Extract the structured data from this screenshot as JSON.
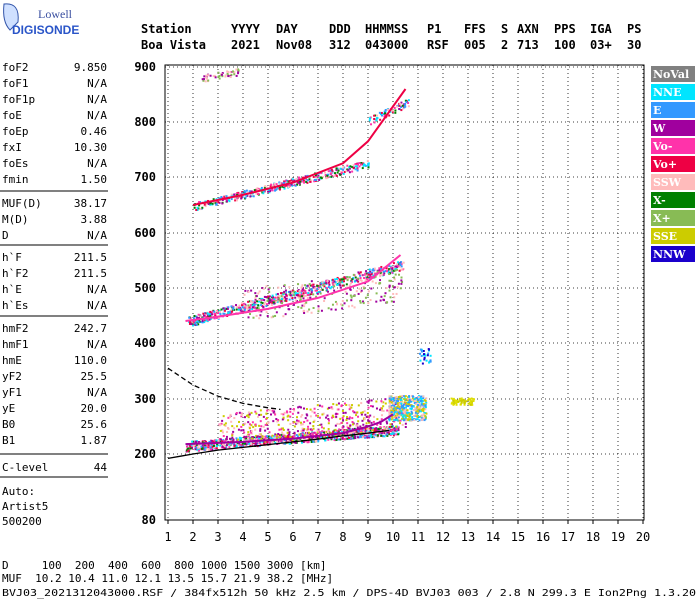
{
  "logo": {
    "top": "Lowell",
    "bottom": "DIGISONDE"
  },
  "header": {
    "labels": [
      "Station",
      "YYYY",
      "DAY",
      "DDD",
      "HHMMSS",
      "P1",
      "FFS",
      "S",
      "AXN",
      "PPS",
      "IGA",
      "PS"
    ],
    "values": [
      "Boa Vista",
      "2021",
      "Nov08",
      "312",
      "043000",
      "RSF",
      "005",
      "2",
      "713",
      "100",
      "03+",
      "30"
    ]
  },
  "params": {
    "group1": [
      {
        "label": "foF2",
        "value": "9.850"
      },
      {
        "label": "foF1",
        "value": "N/A"
      },
      {
        "label": "foF1p",
        "value": "N/A"
      },
      {
        "label": "foE",
        "value": "N/A"
      },
      {
        "label": "foEp",
        "value": "0.46"
      },
      {
        "label": "fxI",
        "value": "10.30"
      },
      {
        "label": "foEs",
        "value": "N/A"
      },
      {
        "label": "fmin",
        "value": "1.50"
      }
    ],
    "group2": [
      {
        "label": "MUF(D)",
        "value": "38.17"
      },
      {
        "label": "M(D)",
        "value": "3.88"
      },
      {
        "label": "D",
        "value": "N/A"
      }
    ],
    "group3": [
      {
        "label": "h`F",
        "value": "211.5"
      },
      {
        "label": "h`F2",
        "value": "211.5"
      },
      {
        "label": "h`E",
        "value": "N/A"
      },
      {
        "label": "h`Es",
        "value": "N/A"
      }
    ],
    "group4": [
      {
        "label": "hmF2",
        "value": "242.7"
      },
      {
        "label": "hmF1",
        "value": "N/A"
      },
      {
        "label": "hmE",
        "value": "110.0"
      },
      {
        "label": "yF2",
        "value": "25.5"
      },
      {
        "label": "yF1",
        "value": "N/A"
      },
      {
        "label": "yE",
        "value": "20.0"
      },
      {
        "label": "B0",
        "value": "25.6"
      },
      {
        "label": "B1",
        "value": "1.87"
      }
    ],
    "clevel": {
      "label": "C-level",
      "value": "44"
    },
    "auto": [
      "Auto:",
      "Artist5",
      "500200"
    ]
  },
  "legend": [
    {
      "label": "NoVal",
      "bg": "#808080",
      "fg": "#ffffff"
    },
    {
      "label": "NNE",
      "bg": "#00e5ff",
      "fg": "#ffffff"
    },
    {
      "label": "E",
      "bg": "#3399ff",
      "fg": "#ffffff"
    },
    {
      "label": "W",
      "bg": "#a0009e",
      "fg": "#ffffff"
    },
    {
      "label": "Vo-",
      "bg": "#ff33aa",
      "fg": "#ffffff"
    },
    {
      "label": "Vo+",
      "bg": "#ee0044",
      "fg": "#ffffff"
    },
    {
      "label": "SSW",
      "bg": "#ffbbbb",
      "fg": "#ffffff"
    },
    {
      "label": "X-",
      "bg": "#008000",
      "fg": "#ffffff"
    },
    {
      "label": "X+",
      "bg": "#88bb55",
      "fg": "#ffffff"
    },
    {
      "label": "SSE",
      "bg": "#cccc00",
      "fg": "#ffffff"
    },
    {
      "label": "NNW",
      "bg": "#1a00cc",
      "fg": "#ffffff"
    }
  ],
  "footer": {
    "d_row": "D     100  200  400  600  800 1000 1500 3000 [km]",
    "muf_row": "MUF  10.2 10.4 11.0 12.1 13.5 15.7 21.9 38.2 [MHz]",
    "file_row": "BVJ03_2021312043000.RSF / 384fx512h 50 kHz 2.5 km / DPS-4D BVJ03 003 / 2.8 N 299.3 E Ion2Png 1.3.20"
  },
  "chart_data": {
    "type": "scatter",
    "x_ticks": [
      "1",
      "2",
      "3",
      "4",
      "5",
      "6",
      "7",
      "8",
      "9",
      "10",
      "11",
      "12",
      "13",
      "14",
      "15",
      "16",
      "17",
      "18",
      "19",
      "20"
    ],
    "y_ticks": [
      "80",
      "200",
      "300",
      "400",
      "500",
      "600",
      "700",
      "800",
      "900"
    ],
    "xlim": [
      1,
      20
    ],
    "y_scale": "log",
    "ylim": [
      80,
      900
    ],
    "grid": true,
    "legend_placement": "right",
    "traces": [
      {
        "name": "W",
        "color": "#a0009e",
        "x": [
          1.7,
          4,
          6,
          8,
          9,
          9.5,
          10
        ],
        "y": [
          218,
          222,
          228,
          238,
          250,
          258,
          272
        ]
      },
      {
        "name": "Vo-",
        "color": "#ff33aa",
        "x": [
          1.7,
          3,
          5,
          7,
          9,
          10.3
        ],
        "y": [
          440,
          448,
          462,
          482,
          512,
          560
        ]
      },
      {
        "name": "Vo+",
        "color": "#ee0044",
        "x": [
          2,
          4,
          6,
          8,
          9,
          10.5
        ],
        "y": [
          650,
          668,
          690,
          725,
          765,
          860
        ]
      }
    ],
    "profile_solid": {
      "x": [
        1.0,
        1.5,
        2.0,
        3.0,
        4.0,
        5.0,
        6.0,
        7.0,
        8.0,
        9.0,
        9.85
      ],
      "y": [
        192,
        196,
        200,
        207,
        212,
        217,
        222,
        227,
        233,
        238,
        243
      ]
    },
    "profile_dashed": {
      "x": [
        1.0,
        1.5,
        2.0,
        3.0,
        4.0,
        5.0,
        5.5
      ],
      "y": [
        355,
        340,
        325,
        305,
        292,
        284,
        281
      ]
    }
  }
}
